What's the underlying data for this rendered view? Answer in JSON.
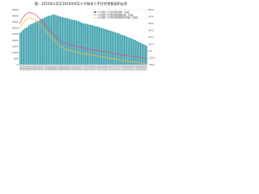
{
  "chart_data": {
    "type": "bar-line",
    "title": "图：2016年1月至2024年6月十大城市二手住宅销售面积走势",
    "categories": [
      "2016-01",
      "2016-02",
      "2016-03",
      "2016-04",
      "2016-05",
      "2016-06",
      "2016-07",
      "2016-08",
      "2016-09",
      "2016-10",
      "2016-11",
      "2016-12",
      "2017-01",
      "2017-02",
      "2017-03",
      "2017-04",
      "2017-05",
      "2017-06",
      "2017-07",
      "2017-08",
      "2017-09",
      "2017-10",
      "2017-11",
      "2017-12",
      "2018-01",
      "2018-02",
      "2018-03",
      "2018-04",
      "2018-05",
      "2018-06",
      "2018-07",
      "2018-08",
      "2018-09",
      "2018-10",
      "2018-11",
      "2018-12",
      "2019-01",
      "2019-02",
      "2019-03",
      "2019-04",
      "2019-05",
      "2019-06",
      "2019-07",
      "2019-08",
      "2019-09",
      "2019-10",
      "2019-11",
      "2019-12",
      "2020-01",
      "2020-02",
      "2020-03",
      "2020-04",
      "2020-05",
      "2020-06",
      "2020-07",
      "2020-08",
      "2020-09",
      "2020-10",
      "2020-11",
      "2020-12",
      "2021-01",
      "2021-02",
      "2021-03",
      "2021-04",
      "2021-05",
      "2021-06",
      "2021-07",
      "2021-08",
      "2021-09",
      "2021-10",
      "2021-11",
      "2021-12",
      "2022-01",
      "2022-02",
      "2022-03",
      "2022-04",
      "2022-05",
      "2022-06",
      "2022-07",
      "2022-08",
      "2022-09",
      "2022-10",
      "2022-11",
      "2022-12",
      "2023-01",
      "2023-02",
      "2023-03",
      "2023-04",
      "2023-05",
      "2023-06",
      "2023-07",
      "2023-08",
      "2023-09",
      "2023-10",
      "2023-11",
      "2023-12",
      "2024-01",
      "2024-02",
      "2024-03",
      "2024-04",
      "2024-05",
      "2024-06"
    ],
    "series": [
      {
        "name": "十大城市二手住宅销售面积（左轴）",
        "type": "bar",
        "color": "#2f9aa8",
        "values": [
          2600,
          2700,
          2800,
          2900,
          3000,
          3000,
          3100,
          3200,
          3300,
          3300,
          3400,
          3400,
          3500,
          3500,
          3600,
          3600,
          3700,
          3700,
          3800,
          3800,
          3900,
          3900,
          4000,
          4000,
          4000,
          4050,
          4100,
          4100,
          4100,
          4050,
          4000,
          4000,
          3950,
          3900,
          3900,
          3850,
          3850,
          3800,
          3800,
          3750,
          3750,
          3700,
          3700,
          3650,
          3650,
          3600,
          3600,
          3550,
          3500,
          3450,
          3400,
          3400,
          3350,
          3350,
          3300,
          3300,
          3250,
          3250,
          3200,
          3200,
          3150,
          3150,
          3100,
          3100,
          3050,
          3000,
          3000,
          2950,
          2900,
          2900,
          2850,
          2800,
          2800,
          2750,
          2700,
          2700,
          2650,
          2600,
          2600,
          2550,
          2500,
          2450,
          2400,
          2400,
          2350,
          2300,
          2250,
          2200,
          2200,
          2150,
          2100,
          2050,
          2000,
          1950,
          1900,
          1850,
          1800,
          1750,
          1700,
          1650,
          1600,
          1550
        ]
      },
      {
        "name": "十大城市二手住宅销售面积同比（右轴）",
        "type": "line",
        "axis": "y2",
        "color": "#e8457a",
        "values": [
          40,
          45,
          48,
          50,
          52,
          54,
          55,
          56,
          56,
          55,
          55,
          54,
          53,
          52,
          50,
          48,
          46,
          44,
          42,
          40,
          38,
          36,
          34,
          32,
          30,
          28,
          26,
          24,
          22,
          20,
          18,
          16,
          15,
          14,
          13,
          12,
          11,
          10,
          10,
          9,
          9,
          8,
          8,
          7,
          7,
          6,
          6,
          6,
          5,
          5,
          4,
          4,
          4,
          3,
          3,
          3,
          2,
          2,
          2,
          2,
          1,
          1,
          1,
          0,
          0,
          0,
          -1,
          -1,
          -1,
          -2,
          -2,
          -2,
          -3,
          -3,
          -3,
          -4,
          -4,
          -4,
          -5,
          -5,
          -5,
          -6,
          -6,
          -6,
          -6,
          -7,
          -7,
          -7,
          -8,
          -8,
          -8,
          -8,
          -9,
          -9,
          -9,
          -9,
          -10,
          -10,
          -10,
          -11,
          -11,
          -11
        ]
      },
      {
        "name": "十大城市二手住宅销售面积累计同比（右轴）",
        "type": "line",
        "axis": "y2",
        "color": "#f2c230",
        "values": [
          32,
          37,
          40,
          42,
          44,
          46,
          47,
          48,
          48,
          47,
          47,
          46,
          45,
          44,
          42,
          40,
          38,
          36,
          34,
          32,
          30,
          28,
          26,
          24,
          22,
          20,
          18,
          16,
          14,
          12,
          10,
          8,
          7,
          6,
          5,
          4,
          3,
          2,
          2,
          1,
          1,
          0,
          0,
          -1,
          -1,
          -2,
          -2,
          -2,
          -3,
          -3,
          -4,
          -4,
          -4,
          -5,
          -5,
          -5,
          -6,
          -6,
          -6,
          -6,
          -7,
          -7,
          -7,
          -8,
          -8,
          -8,
          -9,
          -9,
          -9,
          -10,
          -10,
          -10,
          -11,
          -11,
          -11,
          -12,
          -12,
          -12,
          -13,
          -13,
          -13,
          -14,
          -14,
          -14,
          -14,
          -15,
          -15,
          -15,
          -16,
          -16,
          -16,
          -16,
          -17,
          -17,
          -17,
          -17,
          -18,
          -18,
          -18,
          -19,
          -19,
          -19
        ]
      }
    ],
    "ylim": [
      0,
      4500
    ],
    "yticks": [
      0,
      500,
      1000,
      1500,
      2000,
      2500,
      3000,
      3500,
      4000,
      4500
    ],
    "y2lim": [
      -20,
      60
    ],
    "y2ticks": [
      {
        "value": -20,
        "label": "-20%"
      },
      {
        "value": -10,
        "label": "-10%"
      },
      {
        "value": 0,
        "label": "0%"
      },
      {
        "value": 10,
        "label": "10%"
      },
      {
        "value": 20,
        "label": "20%"
      },
      {
        "value": 30,
        "label": "30%"
      },
      {
        "value": 40,
        "label": "40%"
      },
      {
        "value": 50,
        "label": "50%"
      },
      {
        "value": 60,
        "label": "60%"
      }
    ],
    "grid": false,
    "legend": "top-right"
  }
}
